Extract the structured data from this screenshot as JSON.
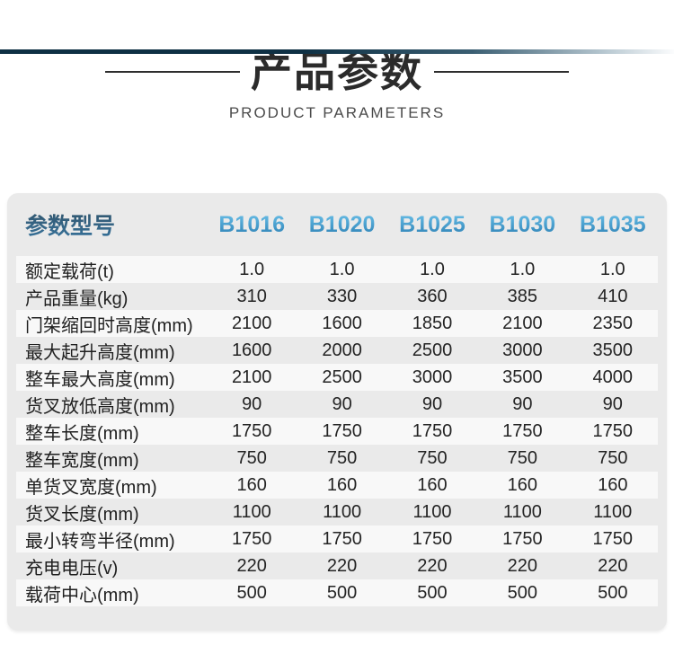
{
  "header": {
    "title": "产品参数",
    "subtitle": "PRODUCT PARAMETERS"
  },
  "table": {
    "corner_label": "参数型号",
    "models": [
      "B1016",
      "B1020",
      "B1025",
      "B1030",
      "B1035"
    ],
    "rows": [
      {
        "label": "额定载荷(t)",
        "values": [
          "1.0",
          "1.0",
          "1.0",
          "1.0",
          "1.0"
        ]
      },
      {
        "label": "产品重量(kg)",
        "values": [
          "310",
          "330",
          "360",
          "385",
          "410"
        ]
      },
      {
        "label": "门架缩回时高度(mm)",
        "values": [
          "2100",
          "1600",
          "1850",
          "2100",
          "2350"
        ]
      },
      {
        "label": "最大起升高度(mm)",
        "values": [
          "1600",
          "2000",
          "2500",
          "3000",
          "3500"
        ]
      },
      {
        "label": "整车最大高度(mm)",
        "values": [
          "2100",
          "2500",
          "3000",
          "3500",
          "4000"
        ]
      },
      {
        "label": "货叉放低高度(mm)",
        "values": [
          "90",
          "90",
          "90",
          "90",
          "90"
        ]
      },
      {
        "label": "整车长度(mm)",
        "values": [
          "1750",
          "1750",
          "1750",
          "1750",
          "1750"
        ]
      },
      {
        "label": "整车宽度(mm)",
        "values": [
          "750",
          "750",
          "750",
          "750",
          "750"
        ]
      },
      {
        "label": "单货叉宽度(mm)",
        "values": [
          "160",
          "160",
          "160",
          "160",
          "160"
        ]
      },
      {
        "label": "货叉长度(mm)",
        "values": [
          "1100",
          "1100",
          "1100",
          "1100",
          "1100"
        ]
      },
      {
        "label": "最小转弯半径(mm)",
        "values": [
          "1750",
          "1750",
          "1750",
          "1750",
          "1750"
        ]
      },
      {
        "label": "充电电压(v)",
        "values": [
          "220",
          "220",
          "220",
          "220",
          "220"
        ]
      },
      {
        "label": "载荷中心(mm)",
        "values": [
          "500",
          "500",
          "500",
          "500",
          "500"
        ]
      }
    ]
  },
  "colors": {
    "topbar_dark": "#0e3044",
    "accent_blue": "#1c6fa6",
    "card_bg": "#eaeaea",
    "row_alt_bg": "#f8f8f8",
    "title_text": "#2b2b2b",
    "subtitle_text": "#4b4b4b",
    "body_text": "#242424"
  }
}
